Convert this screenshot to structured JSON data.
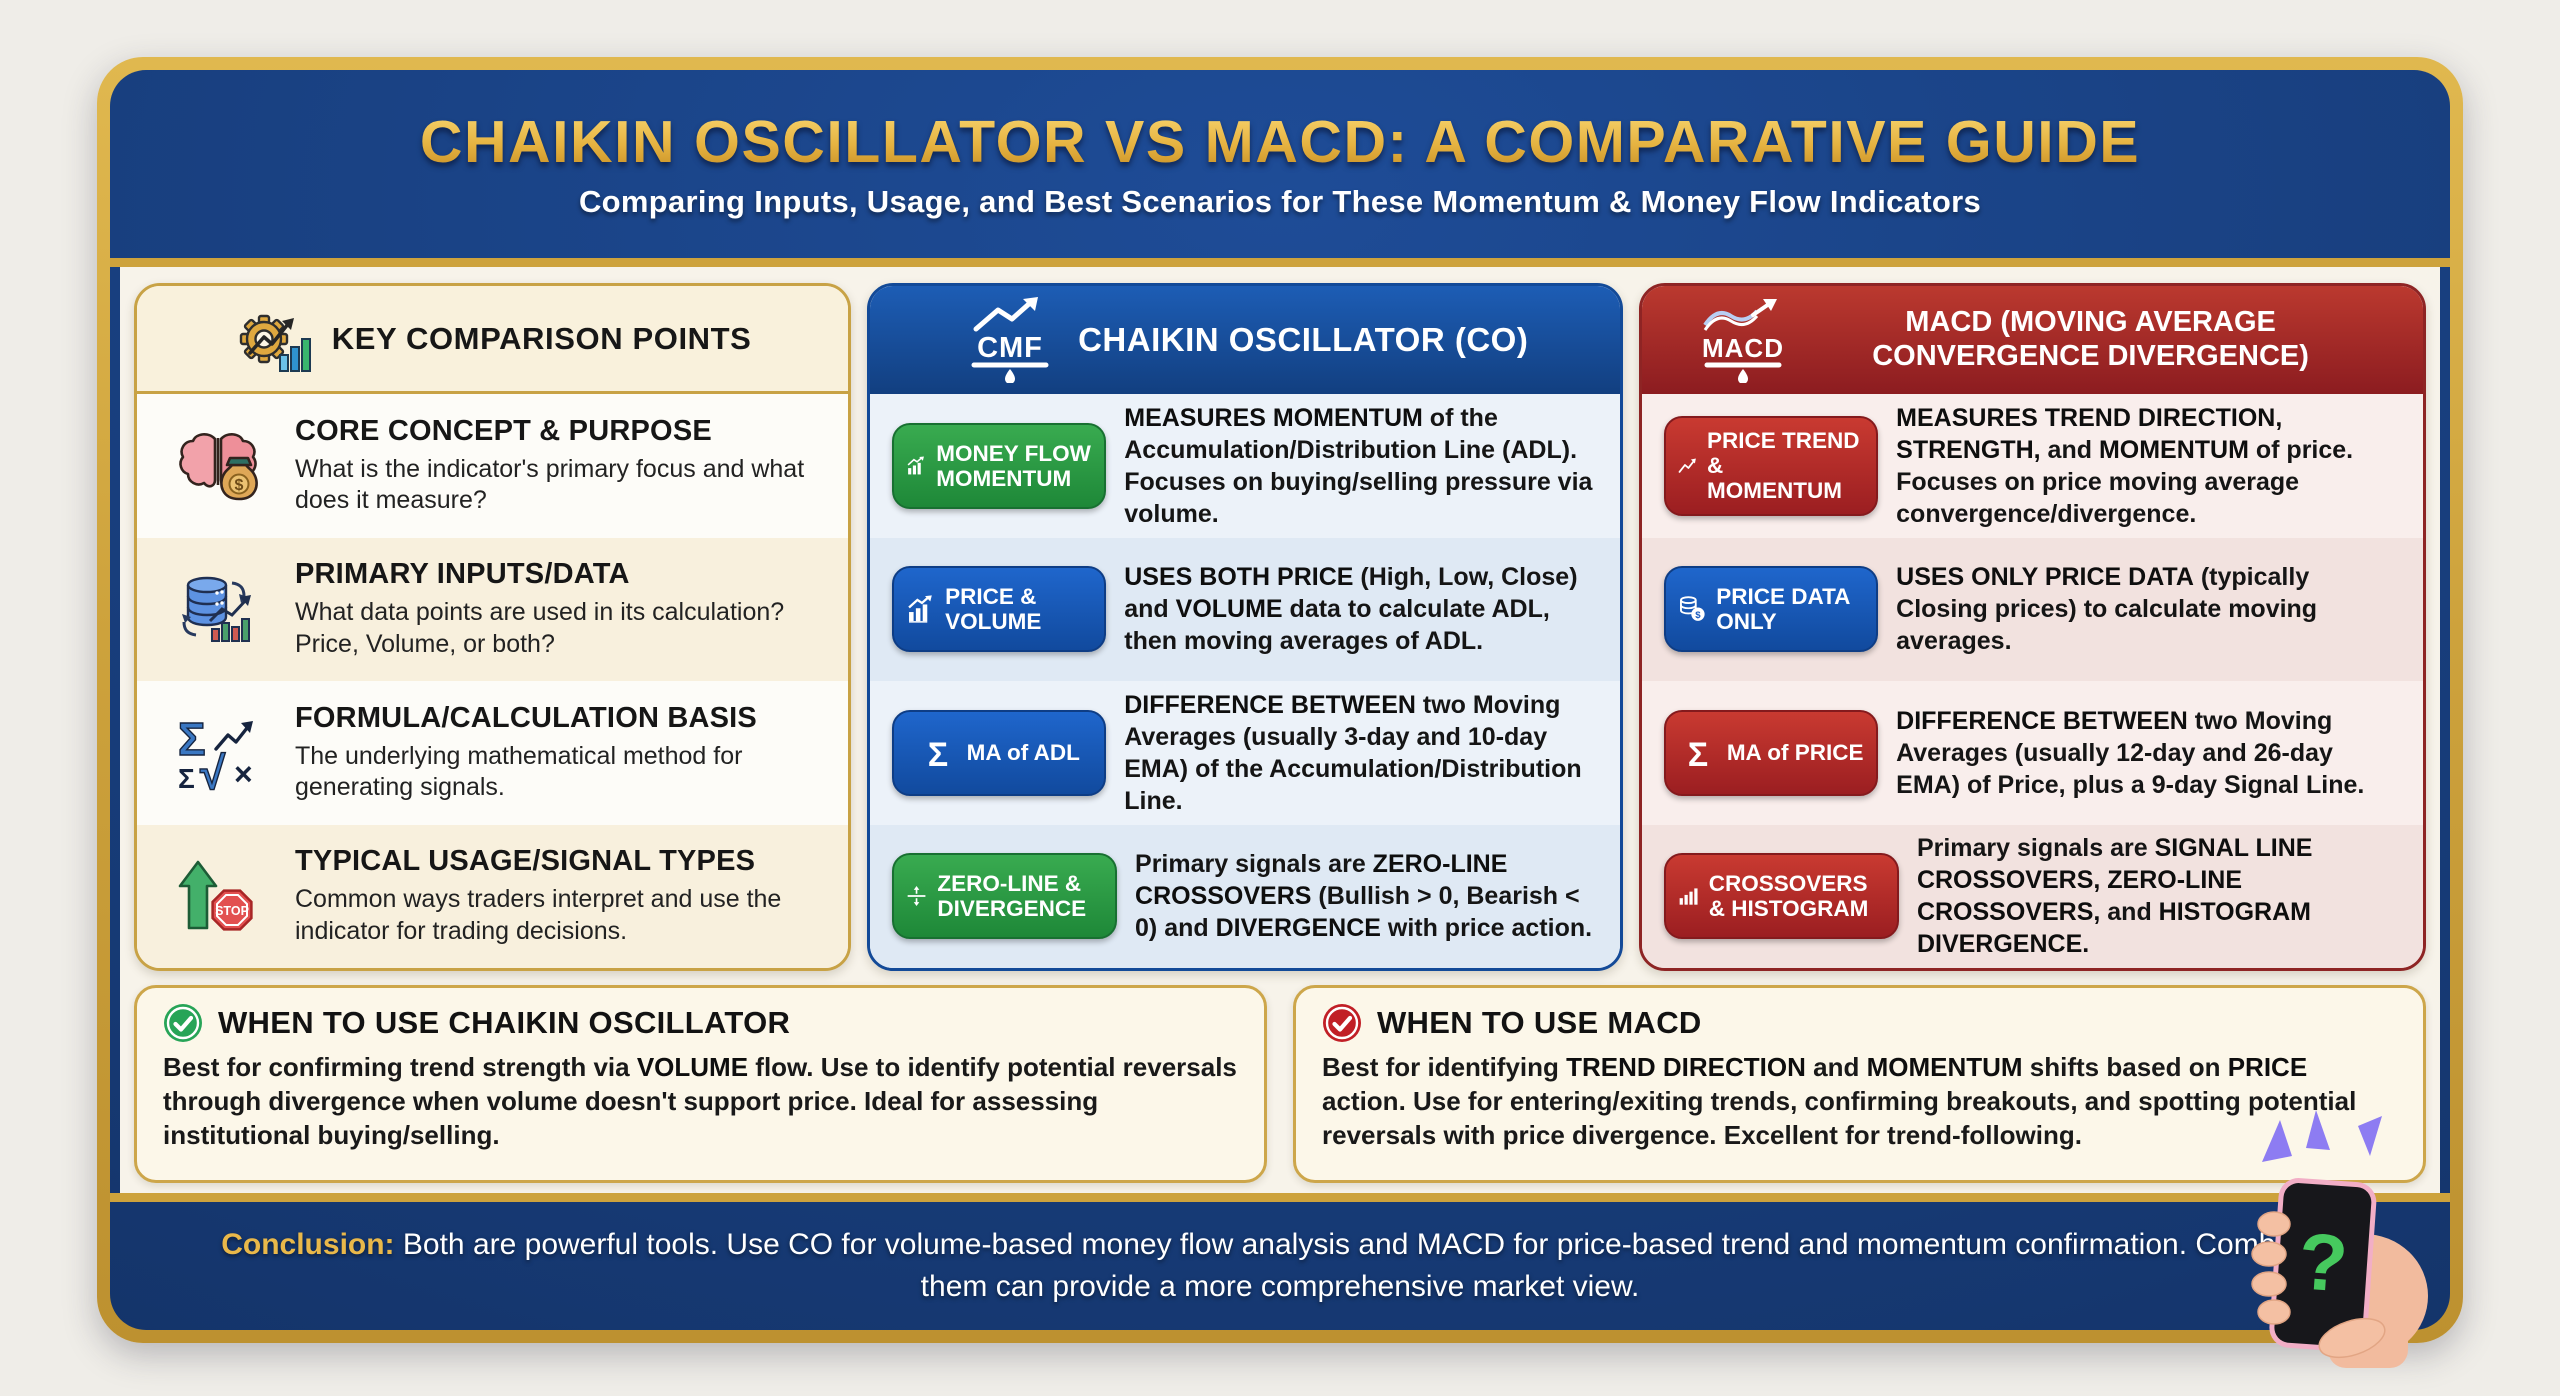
{
  "header": {
    "title": "CHAIKIN OSCILLATOR VS MACD: A COMPARATIVE GUIDE",
    "subtitle": "Comparing Inputs, Usage, and Best Scenarios for These Momentum & Money Flow Indicators"
  },
  "icons": {
    "cmf_label": "CMF",
    "macd_label": "MACD",
    "stop_label": "STOP",
    "dollar": "$",
    "sigma": "Σ",
    "sqrt": "√",
    "times": "×",
    "question_mark": "?"
  },
  "comparison": {
    "header": "KEY COMPARISON POINTS",
    "rows": [
      {
        "icon": "brain-money-icon",
        "title": "CORE CONCEPT & PURPOSE",
        "desc": "What is the indicator's primary focus and what does it measure?"
      },
      {
        "icon": "database-chart-icon",
        "title": "PRIMARY INPUTS/DATA",
        "desc": "What data points are used in its calculation? Price, Volume, or both?"
      },
      {
        "icon": "math-formula-icon",
        "title": "FORMULA/CALCULATION BASIS",
        "desc": "The underlying mathematical method for generating signals."
      },
      {
        "icon": "arrow-stop-icon",
        "title": "TYPICAL USAGE/SIGNAL TYPES",
        "desc": "Common ways traders interpret and use the indicator for trading decisions."
      }
    ]
  },
  "co": {
    "header": "CHAIKIN OSCILLATOR (CO)",
    "rows": [
      {
        "badge": "MONEY FLOW MOMENTUM",
        "badge_color": "green",
        "icon": "bar-chart-arrow-icon",
        "text": [
          {
            "t": "MEASURES MOMENTUM",
            "b": 1
          },
          {
            "t": " of the Accumulation/Distribution Line (ADL). Focuses on buying/selling pressure via volume.",
            "b": 0
          }
        ]
      },
      {
        "badge": "PRICE & VOLUME",
        "badge_color": "blue",
        "icon": "bar-chart-arrow-icon",
        "text": [
          {
            "t": "USES BOTH PRICE",
            "b": 1
          },
          {
            "t": " (High, Low, Close) and ",
            "b": 0
          },
          {
            "t": "VOLUME",
            "b": 1
          },
          {
            "t": " data to calculate ADL, then moving averages of ADL.",
            "b": 0
          }
        ]
      },
      {
        "badge": "MA of ADL",
        "badge_color": "blue",
        "icon": "sigma-icon",
        "text": [
          {
            "t": "DIFFERENCE BETWEEN",
            "b": 1
          },
          {
            "t": " two Moving Averages (usually 3-day and 10-day EMA) of the Accumulation/Distribution Line.",
            "b": 0
          }
        ]
      },
      {
        "badge": "ZERO-LINE & DIVERGENCE",
        "badge_color": "green",
        "icon": "zero-line-arrows-icon",
        "text": [
          {
            "t": "Primary signals are ",
            "b": 0
          },
          {
            "t": "ZERO-LINE CROSSOVERS",
            "b": 1
          },
          {
            "t": " (Bullish > 0, Bearish < 0) and ",
            "b": 0
          },
          {
            "t": "DIVERGENCE",
            "b": 1
          },
          {
            "t": " with price action.",
            "b": 0
          }
        ]
      }
    ]
  },
  "macd": {
    "header": "MACD (MOVING AVERAGE CONVERGENCE DIVERGENCE)",
    "rows": [
      {
        "badge": "PRICE TREND & MOMENTUM",
        "badge_color": "red",
        "icon": "trend-arrow-icon",
        "text": [
          {
            "t": "MEASURES TREND DIRECTION, STRENGTH,",
            "b": 1
          },
          {
            "t": " and ",
            "b": 0
          },
          {
            "t": "MOMENTUM",
            "b": 1
          },
          {
            "t": " of price. Focuses on price moving average convergence/divergence.",
            "b": 0
          }
        ]
      },
      {
        "badge": "PRICE DATA ONLY",
        "badge_color": "blue",
        "icon": "coins-icon",
        "text": [
          {
            "t": "USES ONLY PRICE DATA",
            "b": 1
          },
          {
            "t": " (typically Closing prices) to calculate moving averages.",
            "b": 0
          }
        ]
      },
      {
        "badge": "MA of PRICE",
        "badge_color": "red",
        "icon": "sigma-icon",
        "text": [
          {
            "t": "DIFFERENCE BETWEEN",
            "b": 1
          },
          {
            "t": " two Moving Averages (usually 12-day and 26-day EMA) of Price, plus a 9-day Signal Line.",
            "b": 0
          }
        ]
      },
      {
        "badge": "CROSSOVERS & HISTOGRAM",
        "badge_color": "red",
        "icon": "histogram-icon",
        "text": [
          {
            "t": "Primary signals are ",
            "b": 0
          },
          {
            "t": "SIGNAL LINE CROSSOVERS, ZERO-LINE CROSSOVERS,",
            "b": 1
          },
          {
            "t": " and ",
            "b": 0
          },
          {
            "t": "HISTOGRAM DIVERGENCE.",
            "b": 1
          }
        ]
      }
    ]
  },
  "when_to_use": {
    "co": {
      "title": "WHEN TO USE CHAIKIN OSCILLATOR",
      "text": [
        {
          "t": "Best for confirming trend strength via ",
          "b": 0
        },
        {
          "t": "VOLUME",
          "b": 1
        },
        {
          "t": " flow. Use to identify potential reversals through divergence when volume doesn't support price. Ideal for assessing institutional buying/selling.",
          "b": 0
        }
      ]
    },
    "macd": {
      "title": "WHEN TO USE MACD",
      "text": [
        {
          "t": "Best for identifying ",
          "b": 0
        },
        {
          "t": "TREND DIRECTION",
          "b": 1
        },
        {
          "t": " and ",
          "b": 0
        },
        {
          "t": "MOMENTUM",
          "b": 1
        },
        {
          "t": " shifts based on ",
          "b": 0
        },
        {
          "t": "PRICE",
          "b": 1
        },
        {
          "t": " action. Use for entering/exiting trends, confirming breakouts, and spotting potential reversals with price divergence. Excellent for trend-following.",
          "b": 0
        }
      ]
    }
  },
  "conclusion": {
    "label": "Conclusion:",
    "text": "Both are powerful tools. Use CO for volume-based money flow analysis and MACD for price-based trend and momentum confirmation. Combining them can provide a more comprehensive market view."
  },
  "colors": {
    "gold": "#cda23c",
    "navy": "#173c79",
    "co_blue_header": "#1553a5",
    "macd_red_header": "#a32227",
    "badge_green": "#2e9e44",
    "badge_blue": "#1a5cc0",
    "badge_red": "#c03028",
    "check_green": "#27a457",
    "check_red": "#c11f26",
    "content_bg": "#f7f3ea"
  }
}
